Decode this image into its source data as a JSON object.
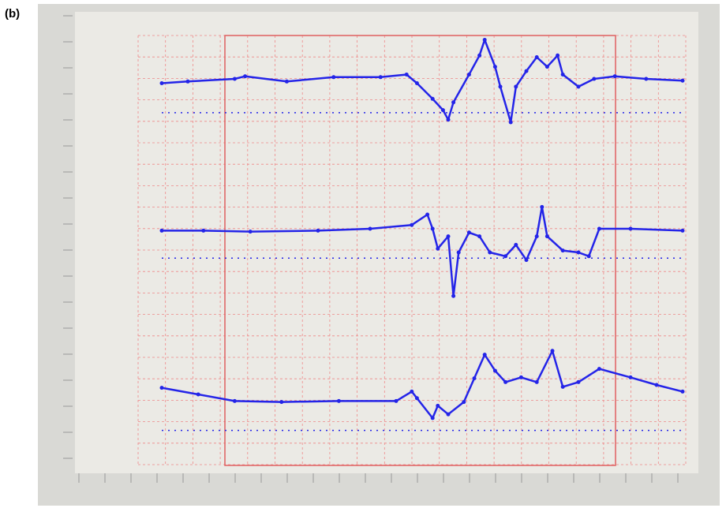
{
  "label": "(b)",
  "chart_data": [
    {
      "type": "line",
      "color": "#2424e8",
      "xlim": [
        0,
        100
      ],
      "ylim": [
        0,
        100
      ],
      "baseline": 11,
      "x": [
        0,
        5,
        14,
        16,
        24,
        33,
        42,
        47,
        49,
        52,
        54,
        55,
        56,
        59,
        61,
        62,
        64,
        65,
        67,
        68,
        70,
        72,
        74,
        76,
        77,
        80,
        83,
        87,
        93,
        100
      ],
      "values": [
        45,
        47,
        50,
        53,
        47,
        52,
        52,
        55,
        45,
        27,
        14,
        3,
        23,
        55,
        77,
        95,
        64,
        41,
        0,
        41,
        59,
        75,
        64,
        77,
        55,
        41,
        50,
        53,
        50,
        48
      ]
    },
    {
      "type": "line",
      "color": "#2424e8",
      "xlim": [
        0,
        100
      ],
      "ylim": [
        0,
        100
      ],
      "baseline": 44,
      "x": [
        0,
        8,
        17,
        30,
        40,
        48,
        51,
        52,
        53,
        55,
        56,
        57,
        59,
        61,
        63,
        66,
        68,
        70,
        72,
        73,
        74,
        77,
        80,
        82,
        84,
        90,
        100
      ],
      "values": [
        73,
        73,
        72,
        73,
        75,
        79,
        90,
        75,
        54,
        67,
        4,
        50,
        71,
        67,
        50,
        46,
        58,
        42,
        67,
        98,
        67,
        52,
        50,
        46,
        75,
        75,
        73
      ]
    },
    {
      "type": "line",
      "color": "#2424e8",
      "xlim": [
        0,
        100
      ],
      "ylim": [
        0,
        100
      ],
      "baseline": 12,
      "x": [
        0,
        7,
        14,
        23,
        34,
        45,
        48,
        49,
        52,
        53,
        55,
        58,
        60,
        62,
        64,
        66,
        69,
        72,
        75,
        77,
        80,
        84,
        90,
        95,
        100
      ],
      "values": [
        57,
        50,
        43,
        42,
        43,
        43,
        53,
        46,
        25,
        38,
        29,
        42,
        67,
        92,
        75,
        63,
        68,
        63,
        96,
        58,
        63,
        77,
        68,
        60,
        53
      ]
    }
  ]
}
